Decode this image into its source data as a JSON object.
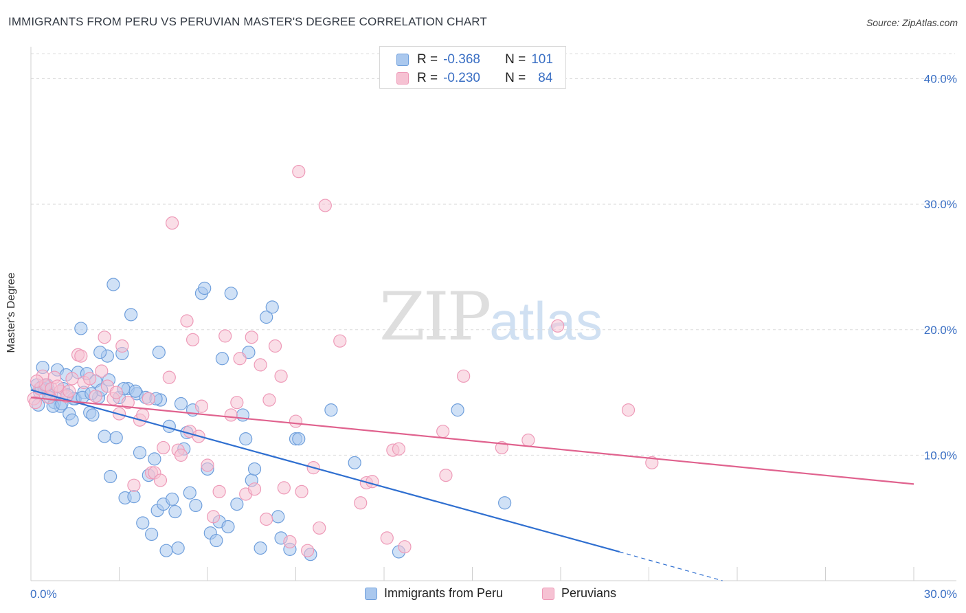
{
  "title": "IMMIGRANTS FROM PERU VS PERUVIAN MASTER'S DEGREE CORRELATION CHART",
  "source": "Source: ZipAtlas.com",
  "watermark": {
    "zip": "ZIP",
    "atlas": "atlas"
  },
  "legend_top": [
    {
      "r_label": "R =",
      "r_value": "-0.368",
      "n_label": "N =",
      "n_value": "101",
      "color": "#7aa6e0"
    },
    {
      "r_label": "R =",
      "r_value": "-0.230",
      "n_label": "N =",
      "n_value": "84",
      "color": "#f0a0bc"
    }
  ],
  "legend_bottom": [
    {
      "label": "Immigrants from Peru",
      "color": "#7aa6e0"
    },
    {
      "label": "Peruvians",
      "color": "#f0a0bc"
    }
  ],
  "colors": {
    "blue_fill": "#aac8ee",
    "blue_stroke": "#6f9fdc",
    "blue_line": "#2f6fd0",
    "pink_fill": "#f6c2d3",
    "pink_stroke": "#ee9ab8",
    "pink_line": "#e0628e",
    "grid": "#dcdcdc",
    "tick_label": "#3a6fc4"
  },
  "chart_data": {
    "type": "scatter",
    "xlabel": "",
    "ylabel": "Master's Degree",
    "xlim": [
      0,
      30
    ],
    "ylim": [
      0,
      42
    ],
    "x_ticks_labeled": [
      "0.0%",
      "30.0%"
    ],
    "y_ticks": [
      10,
      20,
      30,
      40
    ],
    "y_tick_labels": [
      "10.0%",
      "20.0%",
      "30.0%",
      "40.0%"
    ],
    "grid": "horizontal dashed",
    "series": [
      {
        "name": "Immigrants from Peru",
        "trend": {
          "x": [
            0,
            20
          ],
          "y": [
            15.2,
            2.3
          ],
          "dashed_to": [
            23.5,
            0
          ]
        },
        "points": [
          [
            0.2,
            15.6
          ],
          [
            0.3,
            15.0
          ],
          [
            0.35,
            15.4
          ],
          [
            0.4,
            17.0
          ],
          [
            0.5,
            15.5
          ],
          [
            0.6,
            15.2
          ],
          [
            0.7,
            14.8
          ],
          [
            0.8,
            14.2
          ],
          [
            0.9,
            16.8
          ],
          [
            1.0,
            13.9
          ],
          [
            1.1,
            15.3
          ],
          [
            1.2,
            16.4
          ],
          [
            1.3,
            13.3
          ],
          [
            1.4,
            12.8
          ],
          [
            1.5,
            14.5
          ],
          [
            1.6,
            16.6
          ],
          [
            1.7,
            20.1
          ],
          [
            1.8,
            15.0
          ],
          [
            1.9,
            16.5
          ],
          [
            2.0,
            13.4
          ],
          [
            2.1,
            13.2
          ],
          [
            2.2,
            15.9
          ],
          [
            2.3,
            14.6
          ],
          [
            2.4,
            15.2
          ],
          [
            2.5,
            11.5
          ],
          [
            2.6,
            17.9
          ],
          [
            2.7,
            8.3
          ],
          [
            2.8,
            23.6
          ],
          [
            2.9,
            11.4
          ],
          [
            3.0,
            14.6
          ],
          [
            3.1,
            18.1
          ],
          [
            3.2,
            6.6
          ],
          [
            3.3,
            15.3
          ],
          [
            3.4,
            21.2
          ],
          [
            3.5,
            6.7
          ],
          [
            3.6,
            14.9
          ],
          [
            3.7,
            10.2
          ],
          [
            3.8,
            4.6
          ],
          [
            3.9,
            14.6
          ],
          [
            4.0,
            8.4
          ],
          [
            4.1,
            3.7
          ],
          [
            4.2,
            9.7
          ],
          [
            4.3,
            5.6
          ],
          [
            4.4,
            14.4
          ],
          [
            4.5,
            6.1
          ],
          [
            4.6,
            2.4
          ],
          [
            4.7,
            12.3
          ],
          [
            4.8,
            6.5
          ],
          [
            4.9,
            5.5
          ],
          [
            5.0,
            2.6
          ],
          [
            5.1,
            14.1
          ],
          [
            5.2,
            10.5
          ],
          [
            5.3,
            11.8
          ],
          [
            5.4,
            7.0
          ],
          [
            5.5,
            13.6
          ],
          [
            5.6,
            6.0
          ],
          [
            5.8,
            22.9
          ],
          [
            5.9,
            23.3
          ],
          [
            6.0,
            8.9
          ],
          [
            6.1,
            3.8
          ],
          [
            6.3,
            3.2
          ],
          [
            6.4,
            4.7
          ],
          [
            6.5,
            17.7
          ],
          [
            6.7,
            4.3
          ],
          [
            6.8,
            22.9
          ],
          [
            7.0,
            6.1
          ],
          [
            7.2,
            13.2
          ],
          [
            7.3,
            11.3
          ],
          [
            7.4,
            18.2
          ],
          [
            7.5,
            8.0
          ],
          [
            7.6,
            8.9
          ],
          [
            7.8,
            2.6
          ],
          [
            8.0,
            21.0
          ],
          [
            8.2,
            21.8
          ],
          [
            8.4,
            5.1
          ],
          [
            8.5,
            3.4
          ],
          [
            8.8,
            2.5
          ],
          [
            9.0,
            11.3
          ],
          [
            9.5,
            2.1
          ],
          [
            10.2,
            13.6
          ],
          [
            11.0,
            9.4
          ],
          [
            12.5,
            2.3
          ],
          [
            14.5,
            13.6
          ],
          [
            16.1,
            6.2
          ],
          [
            0.25,
            14.0
          ],
          [
            0.45,
            15.3
          ],
          [
            0.55,
            15.6
          ],
          [
            0.65,
            14.6
          ],
          [
            0.75,
            13.9
          ],
          [
            1.05,
            14.1
          ],
          [
            1.25,
            14.8
          ],
          [
            1.45,
            14.5
          ],
          [
            1.75,
            14.6
          ],
          [
            2.05,
            14.9
          ],
          [
            2.35,
            18.2
          ],
          [
            2.65,
            16.0
          ],
          [
            3.15,
            15.3
          ],
          [
            3.55,
            15.1
          ],
          [
            4.25,
            14.5
          ],
          [
            4.35,
            18.2
          ],
          [
            9.1,
            11.3
          ]
        ]
      },
      {
        "name": "Peruvians",
        "trend": {
          "x": [
            0,
            30
          ],
          "y": [
            14.6,
            7.7
          ]
        },
        "points": [
          [
            0.1,
            14.5
          ],
          [
            0.3,
            15.3
          ],
          [
            0.4,
            16.3
          ],
          [
            0.5,
            15.6
          ],
          [
            0.6,
            14.6
          ],
          [
            0.7,
            15.3
          ],
          [
            0.8,
            16.2
          ],
          [
            1.0,
            15.1
          ],
          [
            1.2,
            14.7
          ],
          [
            1.4,
            16.1
          ],
          [
            1.6,
            18.0
          ],
          [
            1.7,
            17.9
          ],
          [
            1.8,
            15.8
          ],
          [
            2.0,
            16.1
          ],
          [
            2.2,
            14.7
          ],
          [
            2.4,
            16.7
          ],
          [
            2.5,
            19.4
          ],
          [
            2.6,
            15.5
          ],
          [
            2.8,
            14.5
          ],
          [
            3.0,
            13.3
          ],
          [
            3.1,
            18.7
          ],
          [
            3.3,
            14.2
          ],
          [
            3.5,
            7.6
          ],
          [
            3.7,
            12.8
          ],
          [
            3.8,
            13.2
          ],
          [
            4.0,
            14.5
          ],
          [
            4.1,
            8.6
          ],
          [
            4.2,
            8.6
          ],
          [
            4.4,
            8.0
          ],
          [
            4.5,
            10.6
          ],
          [
            4.7,
            16.2
          ],
          [
            4.8,
            28.5
          ],
          [
            5.0,
            10.4
          ],
          [
            5.1,
            10.0
          ],
          [
            5.3,
            20.7
          ],
          [
            5.4,
            11.9
          ],
          [
            5.5,
            19.2
          ],
          [
            5.7,
            11.5
          ],
          [
            5.8,
            13.9
          ],
          [
            6.0,
            9.2
          ],
          [
            6.2,
            5.1
          ],
          [
            6.4,
            7.1
          ],
          [
            6.6,
            19.5
          ],
          [
            6.8,
            13.2
          ],
          [
            7.0,
            14.2
          ],
          [
            7.1,
            17.7
          ],
          [
            7.3,
            6.9
          ],
          [
            7.5,
            19.4
          ],
          [
            7.6,
            7.3
          ],
          [
            7.8,
            17.2
          ],
          [
            8.0,
            4.9
          ],
          [
            8.1,
            14.4
          ],
          [
            8.3,
            18.7
          ],
          [
            8.5,
            16.3
          ],
          [
            8.6,
            7.4
          ],
          [
            8.8,
            3.1
          ],
          [
            9.0,
            12.7
          ],
          [
            9.2,
            7.1
          ],
          [
            9.4,
            2.4
          ],
          [
            9.6,
            9.0
          ],
          [
            9.8,
            4.2
          ],
          [
            10.0,
            29.9
          ],
          [
            10.5,
            19.1
          ],
          [
            11.2,
            6.2
          ],
          [
            11.4,
            7.8
          ],
          [
            11.6,
            7.9
          ],
          [
            12.1,
            3.4
          ],
          [
            12.3,
            10.4
          ],
          [
            12.5,
            10.5
          ],
          [
            12.7,
            2.7
          ],
          [
            14.0,
            11.9
          ],
          [
            14.1,
            8.4
          ],
          [
            14.7,
            16.3
          ],
          [
            16.0,
            10.6
          ],
          [
            16.9,
            11.2
          ],
          [
            17.9,
            20.3
          ],
          [
            20.3,
            13.6
          ],
          [
            21.1,
            9.4
          ],
          [
            9.1,
            32.6
          ],
          [
            0.2,
            15.9
          ],
          [
            0.9,
            15.5
          ],
          [
            1.3,
            15.1
          ],
          [
            2.9,
            15.0
          ],
          [
            0.15,
            14.2
          ]
        ]
      }
    ]
  }
}
